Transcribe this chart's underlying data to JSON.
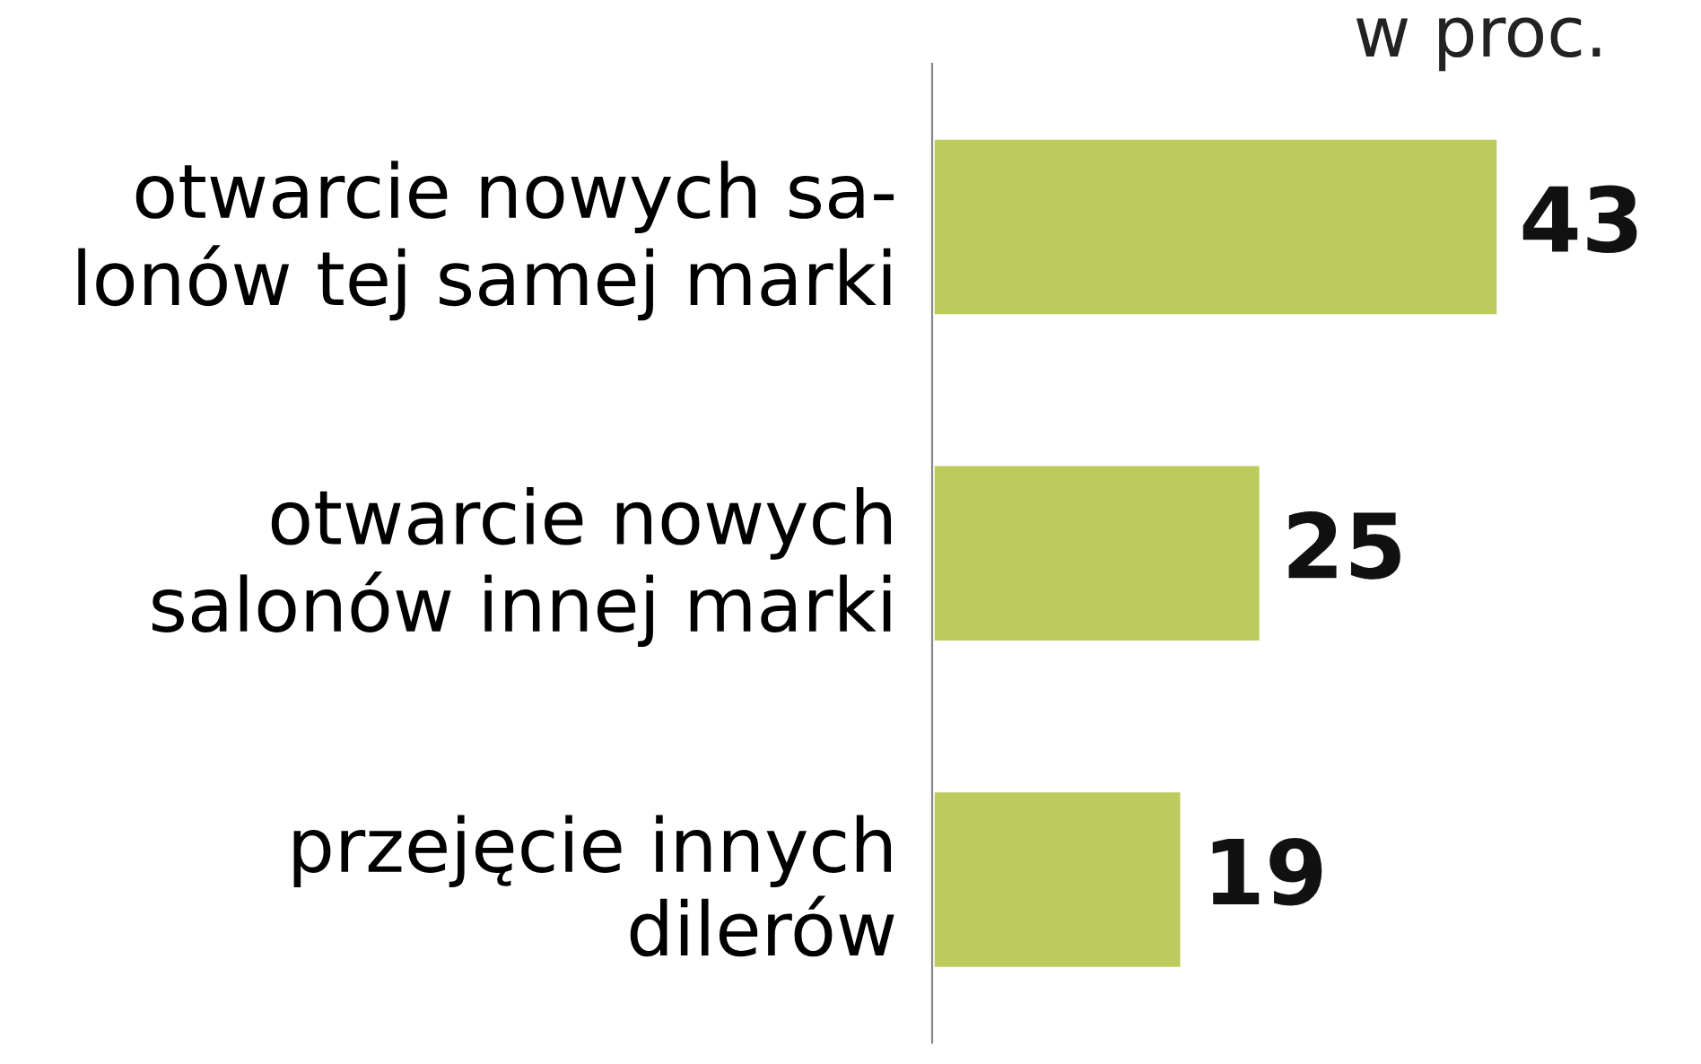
{
  "chart_data": {
    "type": "bar",
    "orientation": "horizontal",
    "categories": [
      "otwarcie nowych sa-\nlonów tej samej marki",
      "otwarcie nowych\nsalonów innej marki",
      "przejęcie innych\ndilerów"
    ],
    "values": [
      43,
      25,
      19
    ],
    "color": "#bccb5c",
    "tick_labels": "y",
    "data_labels": true,
    "grid": false,
    "legend": false,
    "annotations": [
      "w proc."
    ]
  }
}
